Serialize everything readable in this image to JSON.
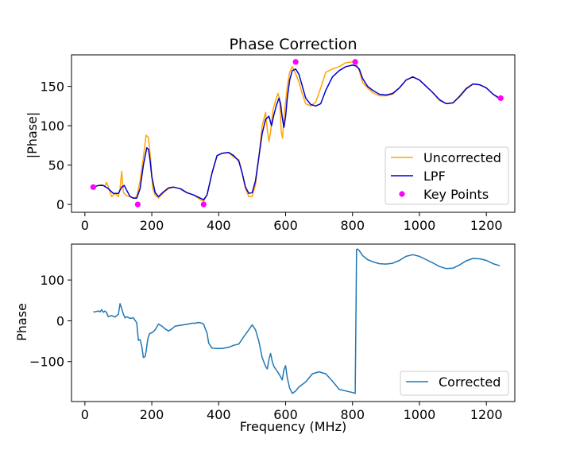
{
  "chart_data": [
    {
      "type": "line",
      "title": "Phase Correction",
      "xlabel": "",
      "ylabel": "|Phase|",
      "xlim": [
        -40,
        1285
      ],
      "ylim": [
        -10,
        190
      ],
      "xticks": [
        0,
        200,
        400,
        600,
        800,
        1000,
        1200
      ],
      "yticks": [
        0,
        50,
        100,
        150
      ],
      "grid": false,
      "legend_position": "lower-right",
      "series": [
        {
          "name": "Uncorrected",
          "type": "line",
          "color": "#ffa500",
          "x": [
            25,
            40,
            50,
            60,
            65,
            72,
            80,
            90,
            100,
            105,
            110,
            115,
            125,
            135,
            145,
            155,
            165,
            175,
            183,
            190,
            197,
            203,
            210,
            220,
            235,
            250,
            265,
            285,
            305,
            325,
            345,
            355,
            365,
            380,
            395,
            410,
            430,
            445,
            460,
            470,
            480,
            490,
            500,
            510,
            520,
            530,
            540,
            545,
            550,
            555,
            562,
            570,
            577,
            582,
            587,
            591,
            595,
            600,
            605,
            612,
            620,
            630,
            640,
            650,
            660,
            675,
            690,
            705,
            720,
            740,
            760,
            780,
            800,
            810,
            820,
            830,
            845,
            860,
            880,
            900,
            920,
            940,
            960,
            980,
            1000,
            1020,
            1040,
            1060,
            1080,
            1100,
            1120,
            1140,
            1160,
            1180,
            1200,
            1220,
            1240
          ],
          "y": [
            22,
            24,
            25,
            23,
            28,
            20,
            10,
            14,
            10,
            20,
            42,
            15,
            11,
            10,
            8,
            10,
            30,
            60,
            88,
            85,
            55,
            20,
            12,
            8,
            15,
            20,
            22,
            20,
            15,
            12,
            6,
            4,
            12,
            40,
            62,
            65,
            66,
            60,
            57,
            40,
            20,
            10,
            10,
            25,
            60,
            100,
            117,
            95,
            80,
            92,
            120,
            132,
            141,
            135,
            92,
            84,
            112,
            130,
            150,
            168,
            175,
            166,
            155,
            140,
            128,
            125,
            130,
            148,
            168,
            172,
            175,
            180,
            181,
            180,
            170,
            155,
            148,
            142,
            138,
            138,
            140,
            148,
            158,
            162,
            158,
            150,
            142,
            132,
            128,
            129,
            138,
            148,
            153,
            152,
            148,
            140,
            133
          ]
        },
        {
          "name": "LPF",
          "type": "line",
          "color": "#0000cc",
          "x": [
            25,
            40,
            55,
            70,
            85,
            100,
            110,
            118,
            125,
            135,
            145,
            155,
            165,
            175,
            185,
            190,
            195,
            200,
            210,
            220,
            235,
            250,
            265,
            285,
            305,
            325,
            345,
            355,
            365,
            380,
            395,
            410,
            430,
            445,
            460,
            470,
            480,
            490,
            500,
            510,
            520,
            530,
            540,
            550,
            558,
            565,
            572,
            580,
            585,
            590,
            595,
            600,
            605,
            612,
            620,
            630,
            640,
            650,
            660,
            675,
            690,
            705,
            720,
            740,
            760,
            780,
            800,
            810,
            820,
            830,
            845,
            860,
            880,
            900,
            920,
            940,
            960,
            980,
            1000,
            1020,
            1040,
            1060,
            1080,
            1100,
            1120,
            1140,
            1160,
            1180,
            1200,
            1220,
            1240
          ],
          "y": [
            22,
            24,
            24,
            20,
            14,
            14,
            22,
            24,
            18,
            10,
            8,
            8,
            20,
            50,
            72,
            70,
            55,
            35,
            15,
            10,
            16,
            21,
            22,
            20,
            15,
            12,
            8,
            6,
            12,
            40,
            62,
            65,
            66,
            62,
            55,
            40,
            22,
            14,
            15,
            30,
            60,
            90,
            108,
            112,
            100,
            114,
            125,
            135,
            128,
            110,
            98,
            112,
            135,
            158,
            170,
            172,
            165,
            150,
            135,
            127,
            125,
            128,
            145,
            162,
            170,
            175,
            177,
            176,
            172,
            160,
            150,
            145,
            140,
            139,
            141,
            148,
            158,
            162,
            158,
            150,
            142,
            133,
            128,
            129,
            137,
            147,
            153,
            152,
            148,
            140,
            135
          ]
        },
        {
          "name": "Key Points",
          "type": "scatter",
          "color": "#ff00ff",
          "x": [
            25,
            158,
            355,
            630,
            808,
            1243
          ],
          "y": [
            22,
            0,
            0,
            181,
            181,
            135
          ]
        }
      ]
    },
    {
      "type": "line",
      "title": "",
      "xlabel": "Frequency (MHz)",
      "ylabel": "Phase",
      "xlim": [
        -40,
        1285
      ],
      "ylim": [
        -198,
        188
      ],
      "xticks": [
        0,
        200,
        400,
        600,
        800,
        1000,
        1200
      ],
      "yticks": [
        -100,
        0,
        100
      ],
      "grid": false,
      "legend_position": "lower-right",
      "series": [
        {
          "name": "Corrected",
          "type": "line",
          "color": "#1f77b4",
          "x": [
            25,
            30,
            40,
            45,
            50,
            55,
            60,
            65,
            70,
            80,
            90,
            100,
            105,
            110,
            115,
            120,
            125,
            135,
            145,
            155,
            160,
            165,
            170,
            175,
            180,
            183,
            188,
            193,
            197,
            203,
            210,
            220,
            230,
            240,
            250,
            260,
            270,
            285,
            300,
            310,
            320,
            330,
            340,
            350,
            355,
            360,
            365,
            370,
            380,
            395,
            410,
            430,
            445,
            460,
            470,
            480,
            490,
            500,
            510,
            520,
            530,
            540,
            545,
            550,
            555,
            560,
            565,
            570,
            580,
            590,
            595,
            600,
            605,
            612,
            620,
            630,
            640,
            660,
            680,
            700,
            720,
            740,
            760,
            780,
            800,
            808,
            810,
            812,
            815,
            820,
            830,
            845,
            860,
            880,
            900,
            920,
            940,
            960,
            980,
            1000,
            1020,
            1040,
            1060,
            1080,
            1100,
            1120,
            1140,
            1160,
            1180,
            1200,
            1220,
            1240
          ],
          "y": [
            22,
            22,
            24,
            22,
            27,
            21,
            24,
            20,
            10,
            13,
            9,
            16,
            42,
            30,
            16,
            7,
            10,
            6,
            7,
            -5,
            -48,
            -46,
            -62,
            -90,
            -88,
            -75,
            -45,
            -32,
            -30,
            -28,
            -22,
            -8,
            -13,
            -20,
            -25,
            -20,
            -13,
            -11,
            -9,
            -8,
            -6,
            -6,
            -4,
            -6,
            -8,
            -20,
            -30,
            -55,
            -67,
            -68,
            -68,
            -65,
            -60,
            -57,
            -45,
            -33,
            -22,
            -10,
            -22,
            -50,
            -90,
            -112,
            -118,
            -95,
            -80,
            -100,
            -112,
            -118,
            -130,
            -145,
            -120,
            -110,
            -140,
            -165,
            -178,
            -172,
            -162,
            -150,
            -130,
            -125,
            -130,
            -148,
            -168,
            -172,
            -176,
            -178,
            0,
            175,
            176,
            172,
            160,
            150,
            145,
            140,
            139,
            141,
            148,
            158,
            162,
            158,
            150,
            142,
            133,
            128,
            129,
            137,
            147,
            153,
            152,
            148,
            140,
            135
          ]
        }
      ]
    }
  ]
}
